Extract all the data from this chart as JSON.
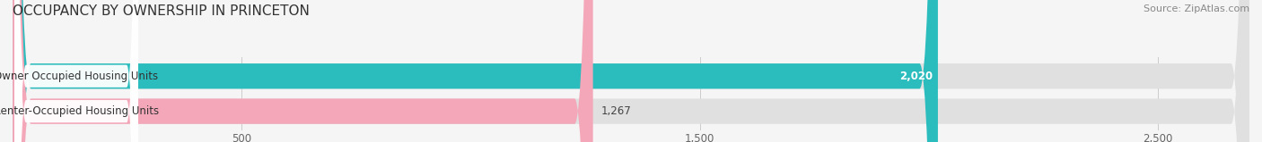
{
  "title": "OCCUPANCY BY OWNERSHIP IN PRINCETON",
  "source": "Source: ZipAtlas.com",
  "categories": [
    "Owner Occupied Housing Units",
    "Renter-Occupied Housing Units"
  ],
  "values": [
    2020,
    1267
  ],
  "bar_colors": [
    "#2bbcbd",
    "#f4a7b9"
  ],
  "xlim": [
    0,
    2700
  ],
  "xticks": [
    500,
    1500,
    2500
  ],
  "xtick_labels": [
    "500",
    "1,500",
    "2,500"
  ],
  "background_color": "#f5f5f5",
  "bar_bg_color": "#e0e0e0",
  "title_fontsize": 11,
  "label_fontsize": 8.5,
  "value_fontsize": 8.5,
  "source_fontsize": 8
}
